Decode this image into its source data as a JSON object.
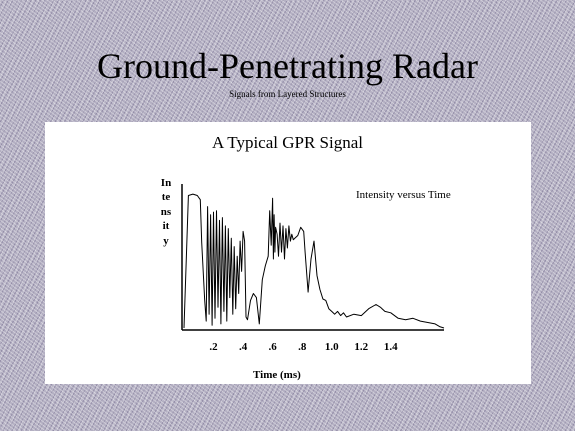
{
  "slide": {
    "title": "Ground-Penetrating Radar",
    "subtitle": "Signals from Layered Structures"
  },
  "chart_data": {
    "type": "line",
    "title": "A Typical GPR Signal",
    "xlabel": "Time (ms)",
    "ylabel": "Intensity",
    "annotation": "Intensity versus Time",
    "xlim": [
      0,
      1.76
    ],
    "ylim": [
      0,
      1
    ],
    "x_ticks": [
      {
        "value": 0.2,
        "label": ".2"
      },
      {
        "value": 0.4,
        "label": ".4"
      },
      {
        "value": 0.6,
        "label": ".6"
      },
      {
        "value": 0.8,
        "label": ".8"
      },
      {
        "value": 1.0,
        "label": "1.0"
      },
      {
        "value": 1.2,
        "label": "1.2"
      },
      {
        "value": 1.4,
        "label": "1.4"
      }
    ],
    "grid": false,
    "colors": {
      "line": "#000000",
      "axis": "#000000"
    },
    "series": [
      {
        "x": [
          0.0,
          0.03,
          0.06,
          0.09,
          0.11,
          0.12,
          0.14,
          0.15,
          0.16,
          0.17,
          0.18,
          0.19,
          0.2,
          0.21,
          0.22,
          0.23,
          0.24,
          0.25,
          0.26,
          0.27,
          0.28,
          0.29,
          0.3,
          0.31,
          0.32,
          0.33,
          0.34,
          0.35,
          0.36,
          0.37,
          0.38,
          0.39,
          0.4,
          0.41,
          0.42,
          0.43,
          0.45,
          0.47,
          0.49,
          0.51,
          0.53,
          0.55,
          0.57,
          0.58,
          0.59,
          0.6,
          0.605,
          0.61,
          0.615,
          0.62,
          0.63,
          0.64,
          0.65,
          0.66,
          0.67,
          0.68,
          0.69,
          0.7,
          0.71,
          0.72,
          0.73,
          0.74,
          0.75,
          0.77,
          0.79,
          0.81,
          0.82,
          0.84,
          0.86,
          0.88,
          0.9,
          0.92,
          0.94,
          0.96,
          0.98,
          1.0,
          1.02,
          1.04,
          1.06,
          1.08,
          1.1,
          1.15,
          1.2,
          1.25,
          1.3,
          1.33,
          1.36,
          1.4,
          1.45,
          1.5,
          1.55,
          1.6,
          1.65,
          1.7,
          1.73,
          1.76
        ],
        "y": [
          0.0,
          0.96,
          0.97,
          0.96,
          0.93,
          0.62,
          0.2,
          0.05,
          0.88,
          0.1,
          0.82,
          0.02,
          0.84,
          0.07,
          0.85,
          0.15,
          0.78,
          0.03,
          0.8,
          0.12,
          0.74,
          0.05,
          0.72,
          0.22,
          0.65,
          0.1,
          0.59,
          0.14,
          0.52,
          0.25,
          0.63,
          0.41,
          0.7,
          0.63,
          0.08,
          0.06,
          0.2,
          0.25,
          0.22,
          0.03,
          0.35,
          0.45,
          0.52,
          0.85,
          0.6,
          0.94,
          0.5,
          0.82,
          0.55,
          0.73,
          0.68,
          0.52,
          0.76,
          0.55,
          0.74,
          0.5,
          0.72,
          0.58,
          0.74,
          0.63,
          0.68,
          0.64,
          0.65,
          0.67,
          0.73,
          0.7,
          0.55,
          0.26,
          0.5,
          0.63,
          0.38,
          0.28,
          0.21,
          0.2,
          0.14,
          0.12,
          0.1,
          0.12,
          0.09,
          0.11,
          0.08,
          0.1,
          0.09,
          0.14,
          0.17,
          0.15,
          0.12,
          0.11,
          0.07,
          0.06,
          0.07,
          0.05,
          0.04,
          0.03,
          0.01,
          0.0
        ]
      }
    ]
  }
}
